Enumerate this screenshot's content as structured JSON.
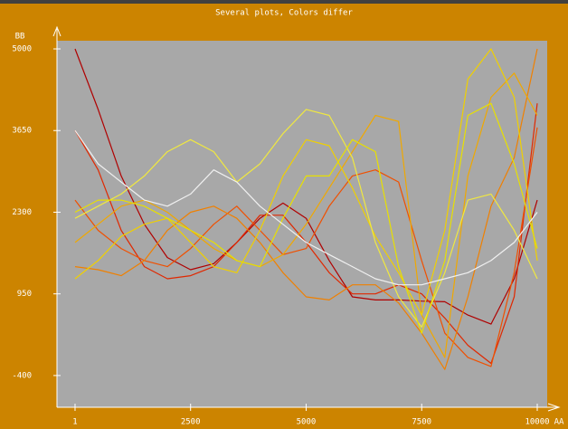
{
  "chart_data": {
    "type": "line",
    "title": "Several plots, Colors differ",
    "x_label": "AA",
    "y_label": "BB",
    "x": [
      1,
      500,
      1000,
      1500,
      2000,
      2500,
      3000,
      3500,
      4000,
      4500,
      5000,
      5500,
      6000,
      6500,
      7000,
      7500,
      8000,
      8500,
      9000,
      9500,
      10000
    ],
    "series": [
      {
        "color": "#b00000",
        "values": [
          5000,
          4000,
          2900,
          2100,
          1550,
          1350,
          1450,
          1800,
          2200,
          2450,
          2200,
          1500,
          900,
          850,
          850,
          830,
          820,
          600,
          450,
          1200,
          2500
        ]
      },
      {
        "color": "#e02800",
        "values": [
          3650,
          3000,
          2000,
          1400,
          1200,
          1250,
          1400,
          1800,
          2250,
          2250,
          1800,
          1300,
          950,
          950,
          1100,
          950,
          550,
          100,
          -200,
          900,
          4100
        ]
      },
      {
        "color": "#f05000",
        "values": [
          2500,
          2000,
          1700,
          1500,
          1400,
          1700,
          2100,
          2400,
          2000,
          1600,
          1700,
          2400,
          2900,
          3000,
          2800,
          1500,
          300,
          -100,
          -250,
          1300,
          3700
        ]
      },
      {
        "color": "#f08000",
        "values": [
          1400,
          1350,
          1250,
          1500,
          2000,
          2300,
          2400,
          2200,
          1800,
          1300,
          900,
          850,
          1100,
          1100,
          800,
          300,
          -300,
          900,
          2400,
          3200,
          5000
        ]
      },
      {
        "color": "#f0a800",
        "values": [
          1800,
          2100,
          2400,
          2500,
          2300,
          2000,
          1700,
          1500,
          1400,
          1600,
          2100,
          2700,
          3300,
          3900,
          3800,
          600,
          -100,
          2900,
          4200,
          4600,
          3900
        ]
      },
      {
        "color": "#f0d000",
        "values": [
          1200,
          1500,
          1900,
          2100,
          2200,
          1800,
          1400,
          1300,
          2000,
          2900,
          3500,
          3400,
          2700,
          1900,
          1300,
          600,
          2000,
          4500,
          5000,
          4200,
          1500
        ]
      },
      {
        "color": "#f0e840",
        "values": [
          2200,
          2400,
          2600,
          2900,
          3300,
          3500,
          3300,
          2800,
          3100,
          3600,
          4000,
          3900,
          3200,
          1800,
          900,
          400,
          1300,
          2500,
          2600,
          2000,
          1200
        ]
      },
      {
        "color": "#e8e000",
        "values": [
          2300,
          2500,
          2500,
          2400,
          2200,
          2000,
          1800,
          1500,
          1400,
          2200,
          2900,
          2900,
          3500,
          3300,
          1400,
          300,
          1500,
          3900,
          4100,
          3100,
          1700
        ]
      },
      {
        "color": "#f0f0f0",
        "values": [
          3650,
          3100,
          2800,
          2500,
          2400,
          2600,
          3000,
          2800,
          2400,
          2100,
          1800,
          1600,
          1400,
          1200,
          1100,
          1100,
          1200,
          1300,
          1500,
          1800,
          2300
        ]
      }
    ],
    "xlim": [
      -390,
      10215
    ],
    "ylim": [
      -925,
      5135
    ],
    "xticks": [
      1,
      2500,
      5000,
      7500,
      10000
    ],
    "yticks": [
      -400,
      950,
      2300,
      3650,
      5000
    ]
  }
}
